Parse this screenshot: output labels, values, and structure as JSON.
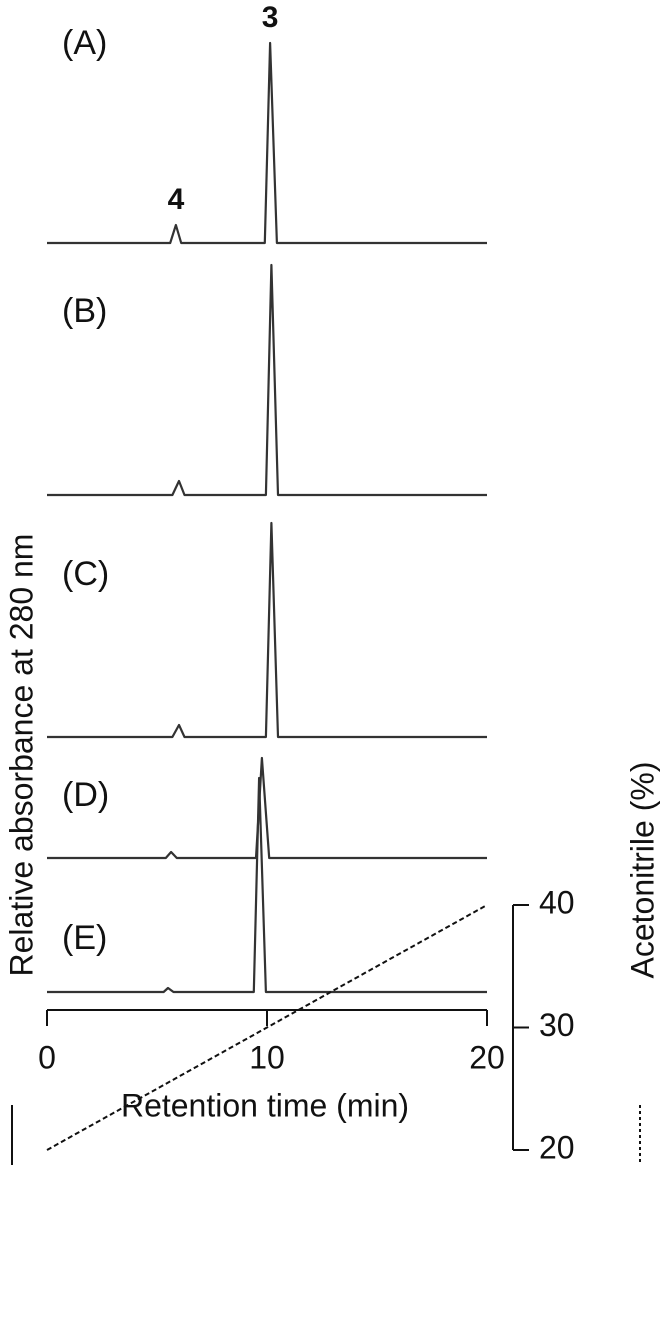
{
  "chart_data": {
    "type": "line",
    "x_label": "Retention time (min)",
    "y_label": "Relative absorbance at 280 nm",
    "y2_label": "Acetonitrile (%)",
    "xlim": [
      0,
      20
    ],
    "xticks": [
      0,
      10,
      20
    ],
    "ylim": [
      0,
      1.2
    ],
    "y2lim": [
      20,
      40
    ],
    "y2ticks": [
      20,
      30,
      40
    ],
    "color": "#333333",
    "panels": [
      {
        "label": "(A)",
        "x": [
          0,
          5.6,
          5.86,
          6.1,
          9.9,
          10.14,
          10.45,
          20
        ],
        "values": [
          0,
          0,
          0.09,
          0,
          0,
          1.0,
          0,
          0
        ]
      },
      {
        "label": "(B)",
        "x": [
          0,
          5.7,
          6.0,
          6.25,
          9.95,
          10.2,
          10.5,
          20
        ],
        "values": [
          0,
          0,
          0.07,
          0,
          0,
          1.15,
          0,
          0
        ]
      },
      {
        "label": "(C)",
        "x": [
          0,
          5.7,
          6.0,
          6.25,
          9.95,
          10.2,
          10.5,
          20
        ],
        "values": [
          0,
          0,
          0.06,
          0,
          0,
          1.07,
          0,
          0
        ]
      },
      {
        "label": "(D)",
        "x": [
          0,
          5.4,
          5.64,
          5.9,
          9.5,
          9.77,
          10.1,
          20
        ],
        "values": [
          0,
          0,
          0.03,
          0,
          0,
          0.5,
          0,
          0
        ]
      },
      {
        "label": "(E)",
        "x": [
          0,
          5.3,
          5.5,
          5.75,
          9.4,
          9.64,
          9.95,
          20
        ],
        "values": [
          0,
          0,
          0.02,
          0,
          0,
          1.07,
          0,
          0
        ]
      }
    ],
    "gradient": {
      "x": [
        0,
        20
      ],
      "values": [
        20,
        40
      ],
      "axis": "y2",
      "dashed": true
    },
    "annotations": [
      {
        "text": "3",
        "x": 10.14,
        "y": 1.0
      },
      {
        "text": "4",
        "x": 5.86,
        "y": 0.09
      }
    ]
  }
}
